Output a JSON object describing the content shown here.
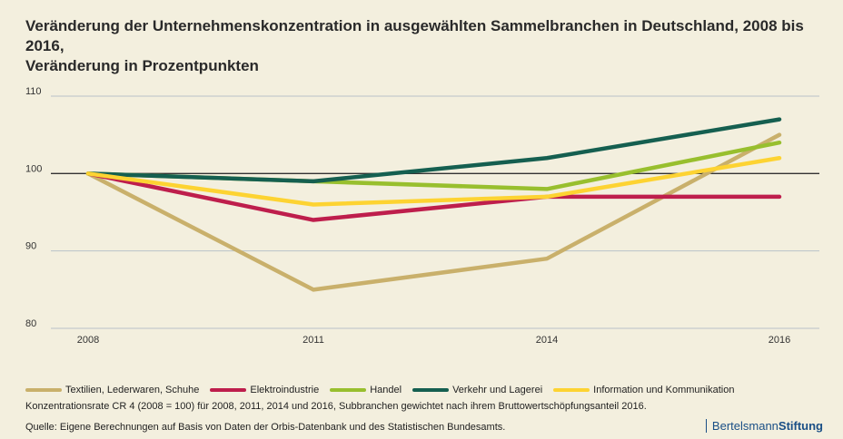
{
  "title_line1": "Veränderung der Unternehmenskonzentration in ausgewählten Sammelbranchen in Deutschland, 2008 bis 2016,",
  "title_line2": "Veränderung in Prozentpunkten",
  "note": "Konzentrationsrate CR 4 (2008 = 100) für 2008, 2011, 2014 und 2016, Subbranchen gewichtet nach ihrem Bruttowertschöpfungsanteil 2016.",
  "source": "Quelle: Eigene Berechnungen auf Basis von Daten der Orbis-Datenbank und des Statistischen Bundesamts.",
  "brand": {
    "part1": "Bertelsmann",
    "part2": "Stiftung"
  },
  "colors": {
    "background": "#f3efde",
    "grid": "#b9c2c8",
    "baseline": "#333333"
  },
  "chart_data": {
    "type": "line",
    "x": [
      "2008",
      "2011",
      "2014",
      "2016"
    ],
    "ylim": [
      80,
      110
    ],
    "yticks": [
      80,
      90,
      100,
      110
    ],
    "grid": true,
    "reference_line": 100,
    "legend_position": "bottom",
    "series": [
      {
        "name": "Textilien, Lederwaren, Schuhe",
        "color": "#c9b06b",
        "values": [
          100,
          85,
          89,
          105
        ]
      },
      {
        "name": "Elektroindustrie",
        "color": "#be1e4c",
        "values": [
          100,
          94,
          97,
          97
        ]
      },
      {
        "name": "Handel",
        "color": "#98bf2e",
        "values": [
          100,
          99,
          98,
          104
        ]
      },
      {
        "name": "Verkehr und Lagerei",
        "color": "#155f50",
        "values": [
          100,
          99,
          102,
          107
        ]
      },
      {
        "name": "Information und Kommunikation",
        "color": "#fdd332",
        "values": [
          100,
          96,
          97,
          102
        ]
      }
    ]
  }
}
